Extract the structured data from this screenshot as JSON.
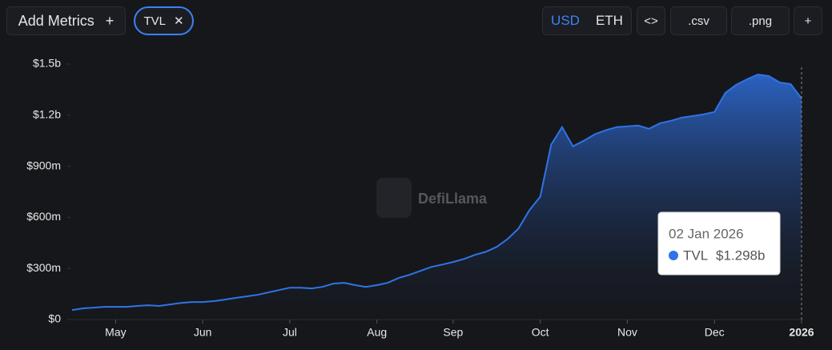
{
  "toolbar": {
    "add_metrics": "Add Metrics",
    "add_icon": "+",
    "metric_pill": "TVL",
    "close_icon": "✕",
    "currency": [
      "USD",
      "ETH"
    ],
    "embed": "<>",
    "csv": ".csv",
    "png": ".png",
    "more": "+"
  },
  "watermark": "DefiLlama",
  "chart_data": {
    "type": "area",
    "series": [
      {
        "name": "TVL",
        "color": "#2f74e6",
        "values": [
          56000000,
          66000000,
          70000000,
          75000000,
          75000000,
          75000000,
          80000000,
          84000000,
          80000000,
          89000000,
          98000000,
          103000000,
          103000000,
          108000000,
          117000000,
          127000000,
          136000000,
          145000000,
          159000000,
          173000000,
          187000000,
          187000000,
          183000000,
          192000000,
          211000000,
          216000000,
          202000000,
          192000000,
          202000000,
          216000000,
          244000000,
          263000000,
          286000000,
          309000000,
          323000000,
          338000000,
          356000000,
          380000000,
          398000000,
          427000000,
          473000000,
          534000000,
          642000000,
          722000000,
          1027000000,
          1130000000,
          1017000000,
          1050000000,
          1088000000,
          1111000000,
          1130000000,
          1134000000,
          1139000000,
          1120000000,
          1153000000,
          1167000000,
          1186000000,
          1195000000,
          1205000000,
          1219000000,
          1331000000,
          1378000000,
          1411000000,
          1439000000,
          1430000000,
          1392000000,
          1383000000,
          1298000000
        ]
      }
    ],
    "categories": [
      null,
      null,
      null,
      null,
      "May",
      null,
      null,
      null,
      null,
      null,
      null,
      null,
      "Jun",
      null,
      null,
      null,
      null,
      null,
      null,
      null,
      "Jul",
      null,
      null,
      null,
      null,
      null,
      null,
      null,
      "Aug",
      null,
      null,
      null,
      null,
      null,
      null,
      "Sep",
      null,
      null,
      null,
      null,
      null,
      null,
      null,
      "Oct",
      null,
      null,
      null,
      null,
      null,
      null,
      null,
      "Nov",
      null,
      null,
      null,
      null,
      null,
      null,
      null,
      "Dec",
      null,
      null,
      null,
      null,
      null,
      null,
      null,
      "2026"
    ],
    "ylim": [
      0,
      1500000000
    ],
    "yticks": [
      {
        "value": 0,
        "label": "$0"
      },
      {
        "value": 300000000,
        "label": "$300m"
      },
      {
        "value": 600000000,
        "label": "$600m"
      },
      {
        "value": 900000000,
        "label": "$900m"
      },
      {
        "value": 1200000000,
        "label": "$1.2b"
      },
      {
        "value": 1500000000,
        "label": "$1.5b"
      }
    ],
    "tooltip": {
      "date": "02 Jan 2026",
      "name": "TVL",
      "value": 1298000000,
      "label": "$1.298b"
    }
  }
}
